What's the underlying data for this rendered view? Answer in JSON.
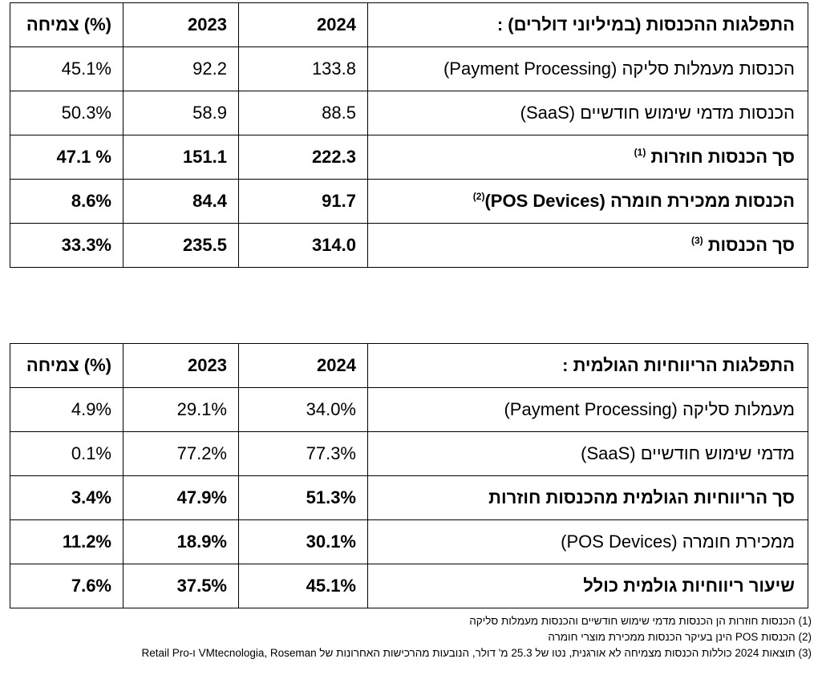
{
  "revenue_table": {
    "header": {
      "label": "התפלגות ההכנסות (במיליוני דולרים) :",
      "y2024": "2024",
      "y2023": "2023",
      "growth": "צמיחה (%)"
    },
    "rows": [
      {
        "label": "הכנסות מעמלות סליקה (Payment Processing)",
        "sup": "",
        "y2024": "133.8",
        "y2023": "92.2",
        "growth": "45.1%",
        "bold": false
      },
      {
        "label": "הכנסות מדמי שימוש חודשיים (SaaS)",
        "sup": "",
        "y2024": "88.5",
        "y2023": "58.9",
        "growth": "50.3%",
        "bold": false
      },
      {
        "label": "סך הכנסות חוזרות",
        "sup": "(1)",
        "y2024": "222.3",
        "y2023": "151.1",
        "growth": "47.1 %",
        "bold": true
      },
      {
        "label": "הכנסות ממכירת חומרה (POS Devices)",
        "sup": "(2)",
        "y2024": "91.7",
        "y2023": "84.4",
        "growth": "8.6%",
        "bold": true
      },
      {
        "label": "סך הכנסות",
        "sup": "(3)",
        "y2024": "314.0",
        "y2023": "235.5",
        "growth": "33.3%",
        "bold": true
      }
    ]
  },
  "margin_table": {
    "header": {
      "label": "התפלגות הריווחיות הגולמית :",
      "y2024": "2024",
      "y2023": "2023",
      "growth": "צמיחה (%)"
    },
    "rows": [
      {
        "label": "מעמלות סליקה (Payment Processing)",
        "y2024": "34.0%",
        "y2023": "29.1%",
        "growth": "4.9%",
        "bold": false
      },
      {
        "label": "מדמי שימוש חודשיים (SaaS)",
        "y2024": "77.3%",
        "y2023": "77.2%",
        "growth": "0.1%",
        "bold": false
      },
      {
        "label": "סך הריווחיות הגולמית מהכנסות חוזרות",
        "y2024": "51.3%",
        "y2023": "47.9%",
        "growth": "3.4%",
        "bold": true
      },
      {
        "label": "ממכירת חומרה (POS Devices)",
        "y2024": "30.1%",
        "y2023": "18.9%",
        "growth": "11.2%",
        "bold": "nums"
      },
      {
        "label": "שיעור ריווחיות גולמית כולל",
        "y2024": "45.1%",
        "y2023": "37.5%",
        "growth": "7.6%",
        "bold": true
      }
    ]
  },
  "footnotes": [
    {
      "marker": "(1)",
      "text": "הכנסות חוזרות הן הכנסות מדמי שימוש חודשיים והכנסות מעמלות סליקה"
    },
    {
      "marker": "(2)",
      "text": "הכנסות POS הינן בעיקר הכנסות ממכירת מוצרי חומרה"
    },
    {
      "marker": "(3)",
      "text": "תוצאות 2024 כוללות הכנסות מצמיחה לא אורגנית, נטו של 25.3 מ' דולר, הנובעות מהרכישות האחרונות של  VMtecnologia, Roseman ו-Retail Pro"
    }
  ]
}
